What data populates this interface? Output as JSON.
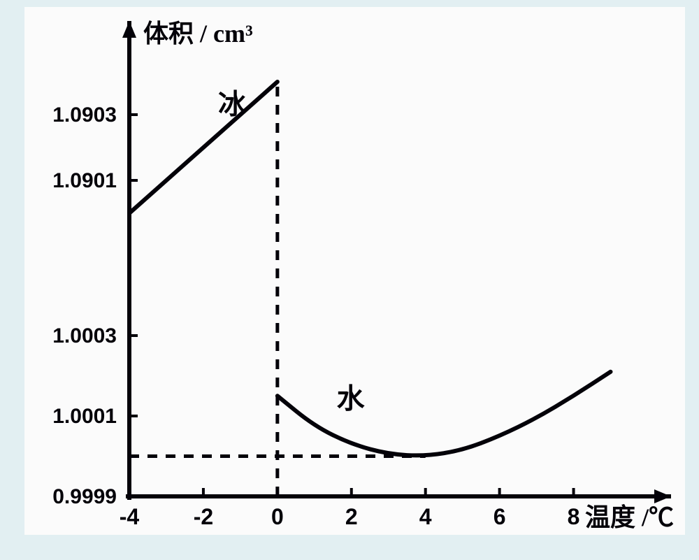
{
  "chart": {
    "type": "line",
    "background_color": "#e2eff2",
    "plot_background_color": "#fbfbfb",
    "axis_color": "#040209",
    "line_color": "#040209",
    "dash_color": "#040209",
    "axis_line_width": 6,
    "series_line_width": 6,
    "dash_line_width": 5,
    "x_axis": {
      "label": "温度 /℃",
      "min": -4,
      "max": 9.5,
      "ticks": [
        -4,
        -2,
        0,
        2,
        4,
        6,
        8
      ],
      "tick_fontsize": 32
    },
    "y_axis": {
      "label": "体积 / cm³",
      "tick_fontsize": 30,
      "lower_segment": {
        "ticks": [
          0.9999,
          1.0001,
          1.0003
        ],
        "min": 0.9999,
        "max": 1.0003
      },
      "upper_segment": {
        "ticks": [
          1.0901,
          1.0903
        ],
        "min": 1.09,
        "max": 1.0905
      }
    },
    "series": {
      "ice": {
        "label": "冰",
        "points": [
          {
            "x": -4,
            "y": 1.09
          },
          {
            "x": 0,
            "y": 1.0904
          }
        ]
      },
      "water": {
        "label": "水",
        "points": [
          {
            "x": 0,
            "y": 1.00015
          },
          {
            "x": 1,
            "y": 1.000075
          },
          {
            "x": 2,
            "y": 1.00003
          },
          {
            "x": 3,
            "y": 1.000005
          },
          {
            "x": 4,
            "y": 1.0
          },
          {
            "x": 5,
            "y": 1.000015
          },
          {
            "x": 6,
            "y": 1.00005
          },
          {
            "x": 7,
            "y": 1.000095
          },
          {
            "x": 8,
            "y": 1.00015
          },
          {
            "x": 9,
            "y": 1.00021
          }
        ]
      }
    },
    "reference_lines": {
      "vertical_at_x": 0,
      "horizontal_at_y": 1.0,
      "horizontal_to_x": 4
    },
    "label_fontsize": 36,
    "series_label_fontsize": 40
  }
}
